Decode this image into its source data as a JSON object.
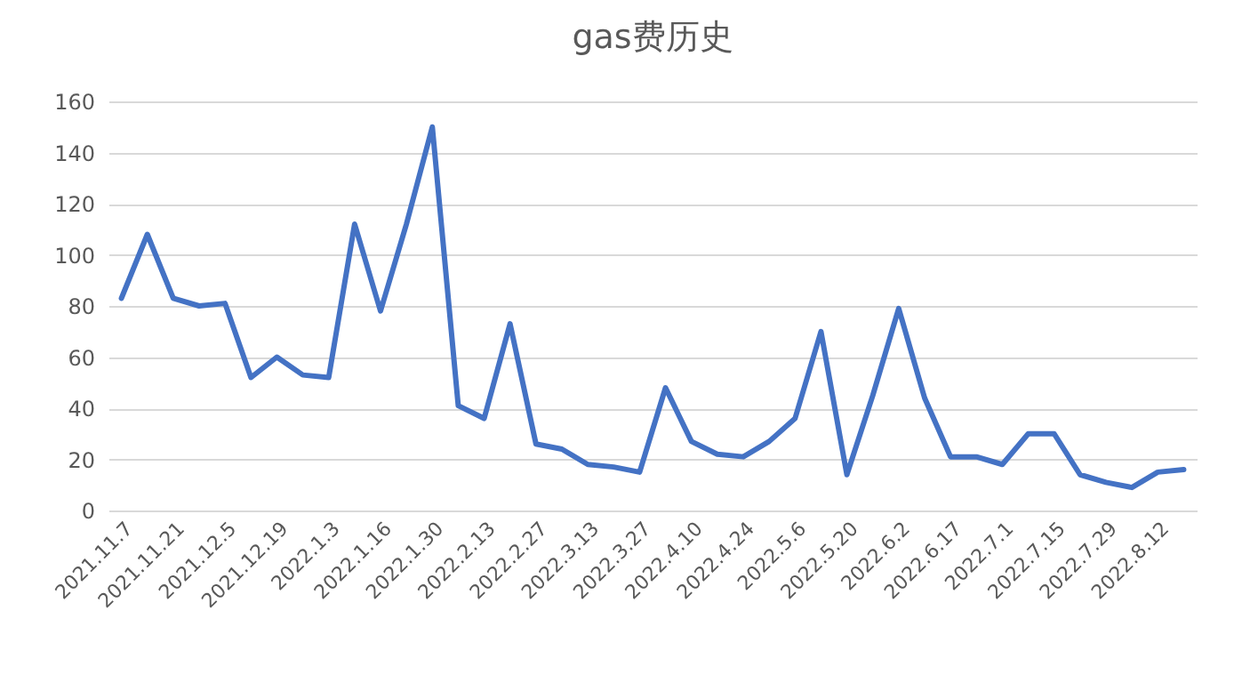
{
  "chart_data": {
    "type": "line",
    "title": "gas费历史",
    "categories": [
      "2021.11.7",
      null,
      "2021.11.21",
      null,
      "2021.12.5",
      null,
      "2021.12.19",
      null,
      "2022.1.3",
      null,
      "2022.1.16",
      null,
      "2022.1.30",
      null,
      "2022.2.13",
      null,
      "2022.2.27",
      null,
      "2022.3.13",
      null,
      "2022.3.27",
      null,
      "2022.4.10",
      null,
      "2022.4.24",
      null,
      "2022.5.6",
      null,
      "2022.5.20",
      null,
      "2022.6.2",
      null,
      "2022.6.17",
      null,
      "2022.7.1",
      null,
      "2022.7.15",
      null,
      "2022.7.29",
      null,
      "2022.8.12",
      null
    ],
    "series": [
      {
        "color": "#4472c4",
        "values": [
          83,
          108,
          83,
          80,
          81,
          52,
          60,
          53,
          52,
          112,
          78,
          112,
          150,
          41,
          36,
          73,
          26,
          24,
          18,
          17,
          15,
          48,
          27,
          22,
          21,
          27,
          36,
          70,
          14,
          45,
          79,
          44,
          21,
          21,
          18,
          30,
          30,
          14,
          11,
          9,
          15,
          16
        ]
      }
    ],
    "ylim": [
      0,
      160
    ],
    "yticks": [
      0,
      20,
      40,
      60,
      80,
      100,
      120,
      140,
      160
    ],
    "grid": "y",
    "marker": "none",
    "line_style": "solid"
  }
}
